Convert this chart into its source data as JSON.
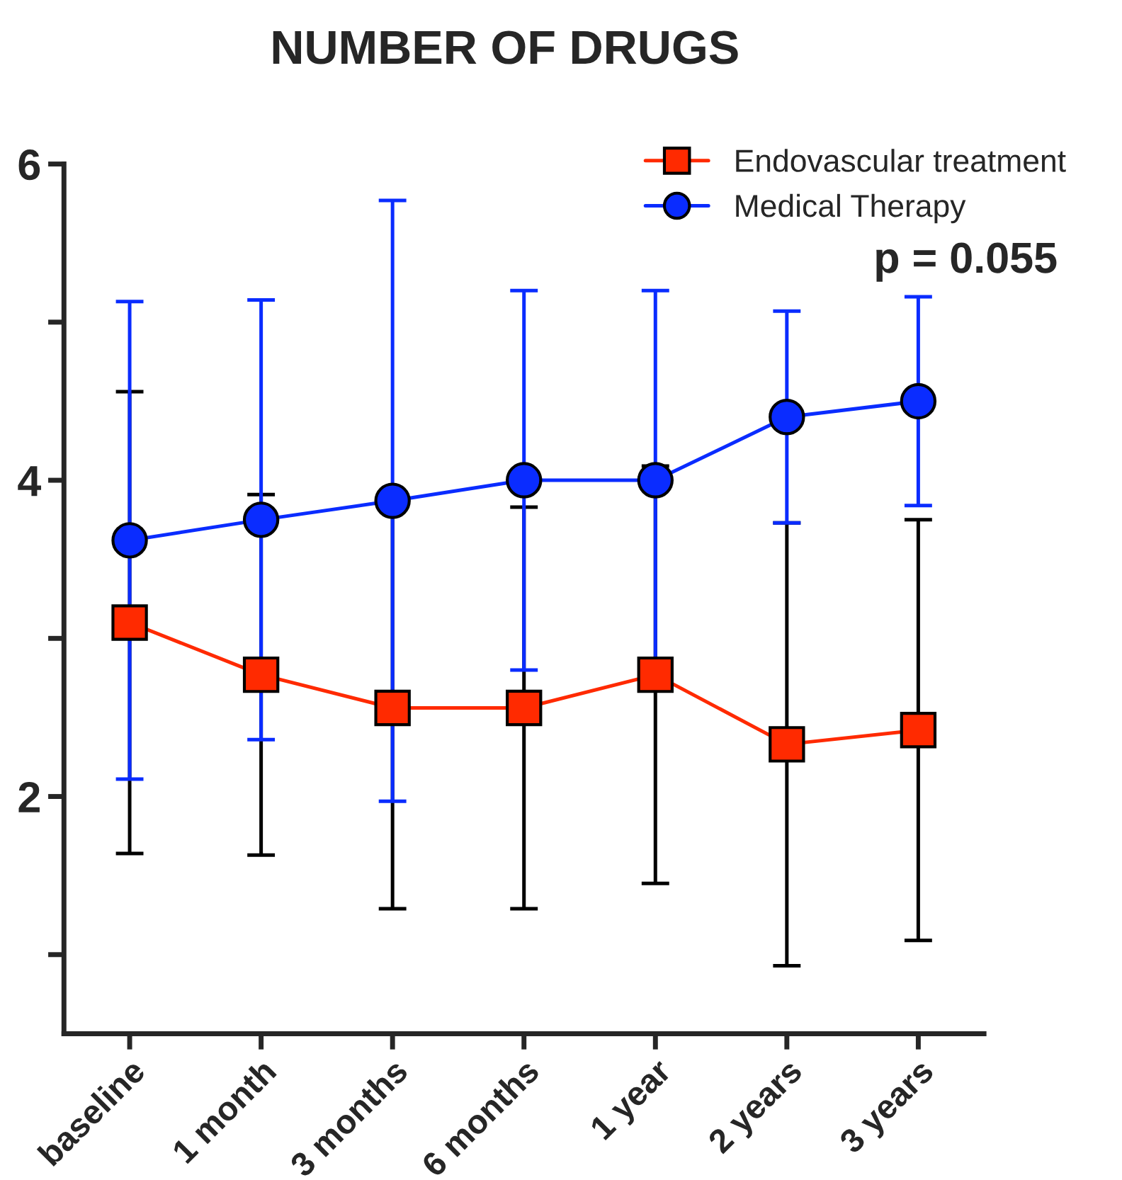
{
  "chart_data": {
    "type": "line",
    "title": "NUMBER OF DRUGS",
    "categories": [
      "baseline",
      "1 month",
      "3 months",
      "6 months",
      "1 year",
      "2 years",
      "3 years"
    ],
    "series": [
      {
        "name": "Endovascular treatment",
        "color": "#ff2a00",
        "marker": "square",
        "values": [
          3.1,
          2.77,
          2.56,
          2.56,
          2.77,
          2.33,
          2.42
        ],
        "errors": [
          1.46,
          1.14,
          1.27,
          1.27,
          1.32,
          1.4,
          1.33
        ]
      },
      {
        "name": "Medical Therapy",
        "color": "#0a2cff",
        "marker": "circle",
        "values": [
          3.62,
          3.75,
          3.87,
          4.0,
          4.0,
          4.4,
          4.5
        ],
        "errors": [
          1.51,
          1.39,
          1.9,
          1.2,
          1.2,
          0.67,
          0.66
        ]
      }
    ],
    "ylim": [
      0.5,
      6
    ],
    "yticks": [
      {
        "value": 1,
        "label": null
      },
      2,
      {
        "value": 3,
        "label": null
      },
      4,
      {
        "value": 5,
        "label": null
      },
      6
    ],
    "annotations": [
      "p = 0.055"
    ],
    "legend": "top right",
    "grid": false,
    "line_style": "solid"
  }
}
